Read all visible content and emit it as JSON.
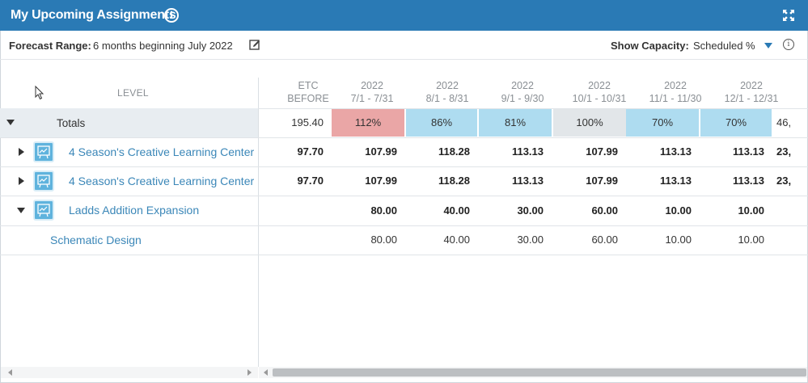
{
  "header": {
    "title": "My Upcoming Assignments",
    "info_icon": "info-icon",
    "expand_icon": "expand-icon"
  },
  "toolbar": {
    "forecast_label": "Forecast Range:",
    "forecast_value": "6 months beginning July 2022",
    "capacity_label": "Show Capacity:",
    "capacity_value": "Scheduled %"
  },
  "grid": {
    "level_header": "LEVEL",
    "columns": [
      {
        "line1": "ETC",
        "line2": "BEFORE"
      },
      {
        "line1": "2022",
        "line2": "7/1 - 7/31"
      },
      {
        "line1": "2022",
        "line2": "8/1 - 8/31"
      },
      {
        "line1": "2022",
        "line2": "9/1 - 9/30"
      },
      {
        "line1": "2022",
        "line2": "10/1 - 10/31"
      },
      {
        "line1": "2022",
        "line2": "11/1 - 11/30"
      },
      {
        "line1": "2022",
        "line2": "12/1 - 12/31"
      }
    ],
    "totals": {
      "label": "Totals",
      "etc_before": "195.40",
      "capacity": [
        "112%",
        "86%",
        "81%",
        "100%",
        "70%",
        "70%"
      ],
      "capacity_colors": [
        "#eaa6a6",
        "#aedcf0",
        "#aedcf0",
        "#e2e6e9",
        "#aedcf0",
        "#aedcf0"
      ],
      "overflow": "46,"
    },
    "rows": [
      {
        "name": "4 Season's Creative Learning Center",
        "etc_before": "97.70",
        "values": [
          "107.99",
          "118.28",
          "113.13",
          "107.99",
          "113.13",
          "113.13"
        ],
        "overflow": "23,"
      },
      {
        "name": "4 Season's Creative Learning Center",
        "etc_before": "97.70",
        "values": [
          "107.99",
          "118.28",
          "113.13",
          "107.99",
          "113.13",
          "113.13"
        ],
        "overflow": "23,"
      },
      {
        "name": "Ladds Addition Expansion",
        "etc_before": "",
        "values": [
          "80.00",
          "40.00",
          "30.00",
          "60.00",
          "10.00",
          "10.00"
        ],
        "overflow": ""
      },
      {
        "name": "Schematic Design",
        "etc_before": "",
        "values": [
          "80.00",
          "40.00",
          "30.00",
          "60.00",
          "10.00",
          "10.00"
        ],
        "overflow": ""
      }
    ]
  }
}
